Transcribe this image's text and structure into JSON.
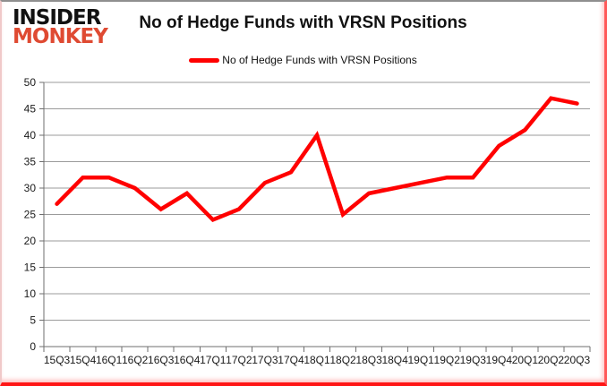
{
  "logo": {
    "line1": "INSIDER",
    "line2": "MONKEY",
    "color2": "#df4a32"
  },
  "header": {
    "title": "No of Hedge Funds with VRSN Positions"
  },
  "legend": {
    "label": "No of Hedge Funds with VRSN Positions",
    "swatch_color": "#ff0000"
  },
  "chart_data": {
    "type": "line",
    "title": "No of Hedge Funds with VRSN Positions",
    "series_name": "No of Hedge Funds with VRSN Positions",
    "categories": [
      "15Q3",
      "15Q4",
      "16Q1",
      "16Q2",
      "16Q3",
      "16Q4",
      "17Q1",
      "17Q2",
      "17Q3",
      "17Q4",
      "18Q1",
      "18Q2",
      "18Q3",
      "18Q4",
      "19Q1",
      "19Q2",
      "19Q3",
      "19Q4",
      "20Q1",
      "20Q2",
      "20Q3"
    ],
    "values": [
      27,
      32,
      32,
      30,
      26,
      29,
      24,
      26,
      31,
      33,
      40,
      25,
      29,
      30,
      31,
      32,
      32,
      38,
      41,
      47,
      46
    ],
    "xlabel": "",
    "ylabel": "",
    "ylim": [
      0,
      50
    ],
    "yticks": [
      0,
      5,
      10,
      15,
      20,
      25,
      30,
      35,
      40,
      45,
      50
    ],
    "grid": true,
    "legend_position": "top",
    "line_color": "#ff0000",
    "grid_color": "#9b9b9b",
    "axis_color": "#6f6f6f",
    "text_color": "#1a1a1a"
  }
}
